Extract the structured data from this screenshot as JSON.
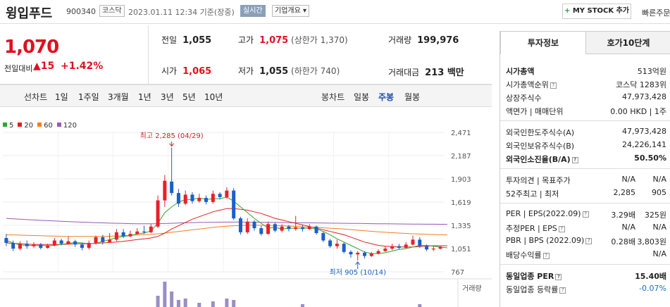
{
  "header": {
    "name": "윙입푸드",
    "code": "900340",
    "market": "코스닥",
    "time": "2023.01.11 12:34 기준(장중)",
    "realtime": "실시간",
    "company_btn": "기업개요 ▾",
    "mystock": "MY STOCK 추가",
    "quick": "빠른주문"
  },
  "summary": {
    "price": "1,070",
    "change_label": "전일대비",
    "change_value": "▲15",
    "change_pct": "+1.42%",
    "prev_close_label": "전일",
    "prev_close": "1,055",
    "high_label": "고가",
    "high": "1,075",
    "upper_limit": "(상한가 1,370)",
    "volume_label": "거래량",
    "volume": "199,976",
    "open_label": "시가",
    "open": "1,065",
    "low_label": "저가",
    "low": "1,055",
    "lower_limit": "(하한가 740)",
    "amount_label": "거래대금",
    "amount": "213 백만"
  },
  "tabs": {
    "line_label": "선차트",
    "line_items": [
      "1일",
      "1주일",
      "3개월",
      "1년",
      "3년",
      "5년",
      "10년"
    ],
    "candle_label": "봉차트",
    "candle_items": [
      "일봉",
      "주봉",
      "월봉"
    ],
    "candle_active": "주봉"
  },
  "chart_data": {
    "type": "candlestick",
    "legend": [
      {
        "name": "5",
        "color": "#2fa62f"
      },
      {
        "name": "20",
        "color": "#e02020"
      },
      {
        "name": "60",
        "color": "#f08020"
      },
      {
        "name": "120",
        "color": "#9b59b6"
      }
    ],
    "y_ticks": [
      "2,471",
      "2,187",
      "1,903",
      "1,619",
      "1,335",
      "1,051",
      "767"
    ],
    "ylim": [
      767,
      2471
    ],
    "high_annotation": "최고 2,285 (04/29)",
    "low_annotation": "최저 905 (10/14)",
    "volume_label": "거래량",
    "candles": [
      {
        "o": 1180,
        "c": 1120,
        "h": 1230,
        "l": 1080
      },
      {
        "o": 1120,
        "c": 1050,
        "h": 1150,
        "l": 1020
      },
      {
        "o": 1050,
        "c": 1110,
        "h": 1140,
        "l": 1030
      },
      {
        "o": 1110,
        "c": 1080,
        "h": 1150,
        "l": 1050
      },
      {
        "o": 1080,
        "c": 1100,
        "h": 1130,
        "l": 1060
      },
      {
        "o": 1100,
        "c": 1060,
        "h": 1120,
        "l": 1040
      },
      {
        "o": 1060,
        "c": 1090,
        "h": 1110,
        "l": 1050
      },
      {
        "o": 1090,
        "c": 1150,
        "h": 1180,
        "l": 1080
      },
      {
        "o": 1150,
        "c": 1110,
        "h": 1170,
        "l": 1090
      },
      {
        "o": 1110,
        "c": 1140,
        "h": 1200,
        "l": 1100
      },
      {
        "o": 1140,
        "c": 1100,
        "h": 1160,
        "l": 1070
      },
      {
        "o": 1100,
        "c": 1060,
        "h": 1120,
        "l": 1030
      },
      {
        "o": 1060,
        "c": 1120,
        "h": 1150,
        "l": 1040
      },
      {
        "o": 1120,
        "c": 1190,
        "h": 1210,
        "l": 1100
      },
      {
        "o": 1190,
        "c": 1130,
        "h": 1220,
        "l": 1100
      },
      {
        "o": 1130,
        "c": 1160,
        "h": 1240,
        "l": 1120
      },
      {
        "o": 1160,
        "c": 1250,
        "h": 1290,
        "l": 1140
      },
      {
        "o": 1250,
        "c": 1200,
        "h": 1290,
        "l": 1180
      },
      {
        "o": 1200,
        "c": 1230,
        "h": 1270,
        "l": 1190
      },
      {
        "o": 1230,
        "c": 1260,
        "h": 1300,
        "l": 1220
      },
      {
        "o": 1260,
        "c": 1250,
        "h": 1330,
        "l": 1230
      },
      {
        "o": 1250,
        "c": 1320,
        "h": 1350,
        "l": 1240
      },
      {
        "o": 1320,
        "c": 1640,
        "h": 1700,
        "l": 1300
      },
      {
        "o": 1640,
        "c": 1880,
        "h": 1950,
        "l": 1560
      },
      {
        "o": 1870,
        "c": 1730,
        "h": 2285,
        "l": 1700
      },
      {
        "o": 1730,
        "c": 1600,
        "h": 1780,
        "l": 1560
      },
      {
        "o": 1600,
        "c": 1710,
        "h": 1760,
        "l": 1580
      },
      {
        "o": 1710,
        "c": 1630,
        "h": 1740,
        "l": 1600
      },
      {
        "o": 1630,
        "c": 1670,
        "h": 1720,
        "l": 1610
      },
      {
        "o": 1670,
        "c": 1620,
        "h": 1700,
        "l": 1590
      },
      {
        "o": 1620,
        "c": 1720,
        "h": 1760,
        "l": 1600
      },
      {
        "o": 1720,
        "c": 1680,
        "h": 1740,
        "l": 1650
      },
      {
        "o": 1680,
        "c": 1760,
        "h": 1800,
        "l": 1660
      },
      {
        "o": 1760,
        "c": 1420,
        "h": 1790,
        "l": 1400
      },
      {
        "o": 1420,
        "c": 1250,
        "h": 1440,
        "l": 1220
      },
      {
        "o": 1250,
        "c": 1380,
        "h": 1420,
        "l": 1230
      },
      {
        "o": 1380,
        "c": 1300,
        "h": 1400,
        "l": 1270
      },
      {
        "o": 1300,
        "c": 1230,
        "h": 1330,
        "l": 1210
      },
      {
        "o": 1230,
        "c": 1350,
        "h": 1380,
        "l": 1220
      },
      {
        "o": 1350,
        "c": 1270,
        "h": 1370,
        "l": 1250
      },
      {
        "o": 1270,
        "c": 1320,
        "h": 1350,
        "l": 1250
      },
      {
        "o": 1320,
        "c": 1290,
        "h": 1340,
        "l": 1260
      },
      {
        "o": 1290,
        "c": 1310,
        "h": 1450,
        "l": 1270
      },
      {
        "o": 1310,
        "c": 1290,
        "h": 1340,
        "l": 1260
      },
      {
        "o": 1290,
        "c": 1320,
        "h": 1350,
        "l": 1280
      },
      {
        "o": 1320,
        "c": 1240,
        "h": 1330,
        "l": 1220
      },
      {
        "o": 1240,
        "c": 1150,
        "h": 1260,
        "l": 1130
      },
      {
        "o": 1150,
        "c": 1080,
        "h": 1170,
        "l": 1060
      },
      {
        "o": 1080,
        "c": 1110,
        "h": 1160,
        "l": 1050
      },
      {
        "o": 1110,
        "c": 1010,
        "h": 1130,
        "l": 990
      },
      {
        "o": 1010,
        "c": 980,
        "h": 1030,
        "l": 940
      },
      {
        "o": 980,
        "c": 1000,
        "h": 1020,
        "l": 905
      },
      {
        "o": 1000,
        "c": 960,
        "h": 1020,
        "l": 930
      },
      {
        "o": 960,
        "c": 990,
        "h": 1010,
        "l": 950
      },
      {
        "o": 990,
        "c": 1020,
        "h": 1040,
        "l": 980
      },
      {
        "o": 1020,
        "c": 1050,
        "h": 1080,
        "l": 1010
      },
      {
        "o": 1050,
        "c": 1080,
        "h": 1110,
        "l": 1030
      },
      {
        "o": 1080,
        "c": 1060,
        "h": 1110,
        "l": 1040
      },
      {
        "o": 1060,
        "c": 1100,
        "h": 1130,
        "l": 1050
      },
      {
        "o": 1100,
        "c": 1160,
        "h": 1210,
        "l": 1090
      },
      {
        "o": 1160,
        "c": 1080,
        "h": 1190,
        "l": 1060
      },
      {
        "o": 1080,
        "c": 1040,
        "h": 1100,
        "l": 1020
      },
      {
        "o": 1040,
        "c": 1050,
        "h": 1090,
        "l": 1020
      },
      {
        "o": 1050,
        "c": 1070,
        "h": 1080,
        "l": 1040
      }
    ],
    "ma5": [
      1150,
      1120,
      1095,
      1090,
      1085,
      1090,
      1085,
      1090,
      1100,
      1115,
      1125,
      1120,
      1110,
      1115,
      1140,
      1160,
      1185,
      1200,
      1210,
      1230,
      1240,
      1265,
      1360,
      1490,
      1560,
      1620,
      1650,
      1650,
      1670,
      1650,
      1660,
      1660,
      1680,
      1630,
      1560,
      1490,
      1420,
      1360,
      1300,
      1310,
      1290,
      1300,
      1300,
      1300,
      1300,
      1290,
      1260,
      1220,
      1170,
      1130,
      1090,
      1050,
      1010,
      990,
      990,
      1000,
      1020,
      1040,
      1050,
      1070,
      1090,
      1090,
      1080,
      1070,
      1060
    ],
    "ma20": [
      1120,
      1115,
      1110,
      1105,
      1100,
      1100,
      1100,
      1100,
      1100,
      1105,
      1110,
      1110,
      1110,
      1115,
      1120,
      1125,
      1130,
      1140,
      1150,
      1160,
      1170,
      1180,
      1200,
      1240,
      1290,
      1330,
      1370,
      1410,
      1440,
      1470,
      1500,
      1520,
      1540,
      1540,
      1530,
      1520,
      1500,
      1480,
      1450,
      1420,
      1400,
      1380,
      1360,
      1340,
      1320,
      1300,
      1280,
      1260,
      1240,
      1220,
      1190,
      1160,
      1130,
      1110,
      1090,
      1080,
      1075,
      1070,
      1070,
      1070,
      1075,
      1080,
      1085,
      1085,
      1085
    ],
    "ma60": [
      1220,
      1218,
      1215,
      1212,
      1210,
      1208,
      1205,
      1203,
      1200,
      1200,
      1200,
      1200,
      1200,
      1200,
      1200,
      1202,
      1205,
      1208,
      1212,
      1216,
      1220,
      1225,
      1232,
      1240,
      1250,
      1260,
      1270,
      1280,
      1290,
      1300,
      1310,
      1318,
      1325,
      1330,
      1333,
      1335,
      1336,
      1336,
      1335,
      1333,
      1330,
      1326,
      1322,
      1318,
      1314,
      1310,
      1305,
      1300,
      1295,
      1290,
      1283,
      1276,
      1269,
      1262,
      1256,
      1250,
      1245,
      1240,
      1236,
      1232,
      1228,
      1225,
      1222,
      1220,
      1218
    ],
    "ma120": [
      1420,
      1415,
      1410,
      1405,
      1400,
      1396,
      1392,
      1388,
      1384,
      1380,
      1377,
      1374,
      1371,
      1368,
      1365,
      1362,
      1360,
      1358,
      1356,
      1355,
      1354,
      1354,
      1355,
      1357,
      1360,
      1363,
      1366,
      1368,
      1370,
      1372,
      1373,
      1374,
      1375,
      1375,
      1375,
      1374,
      1373,
      1372,
      1371,
      1370,
      1369,
      1368,
      1367,
      1366,
      1365,
      1364,
      1363,
      1362,
      1361,
      1360,
      1359,
      1358,
      1357,
      1356,
      1355,
      1354,
      1353,
      1352,
      1351,
      1350,
      1350,
      1349,
      1349,
      1348,
      1348
    ],
    "volume": [
      0,
      0,
      0,
      0,
      0,
      0,
      0,
      0,
      0,
      0,
      0,
      0,
      0,
      0,
      0,
      0,
      0,
      0,
      0,
      0,
      0,
      0,
      40,
      90,
      55,
      25,
      30,
      0,
      15,
      0,
      20,
      0,
      30,
      25,
      0,
      0,
      0,
      0,
      0,
      0,
      0,
      0,
      0,
      10,
      0,
      0,
      0,
      0,
      0,
      0,
      0,
      0,
      0,
      0,
      0,
      0,
      0,
      0,
      0,
      0,
      10,
      0,
      0,
      0,
      0
    ]
  },
  "panel": {
    "tab1": "투자정보",
    "tab2": "호가10단계",
    "rows1": [
      {
        "l": "시가총액",
        "r": "513억원",
        "lb": true,
        "rb": false
      },
      {
        "l": "시가총액순위",
        "r": "코스닥 1283위",
        "q": true
      },
      {
        "l": "상장주식수",
        "r": "47,973,428"
      },
      {
        "l": "액면가 | 매매단위",
        "r": "0.00 HKD  |  1주"
      }
    ],
    "rows2": [
      {
        "l": "외국인한도주식수(A)",
        "r": "47,973,428"
      },
      {
        "l": "외국인보유주식수(B)",
        "r": "24,226,141"
      },
      {
        "l": "외국인소진율(B/A)",
        "r": "50.50%",
        "b": true,
        "q": true
      }
    ],
    "rows3": [
      {
        "l": "투자의견  |  목표주가",
        "m": "N/A",
        "r": "N/A"
      },
      {
        "l": "52주최고  |  최저",
        "m": "2,285",
        "r": "905"
      }
    ],
    "rows4": [
      {
        "l": "PER  |  EPS(2022.09)",
        "m": "3.29배",
        "r": "325원",
        "q": true
      },
      {
        "l": "추정PER  |  EPS",
        "m": "N/A",
        "r": "N/A",
        "q": true
      },
      {
        "l": "PBR  |  BPS (2022.09)",
        "m": "0.28배",
        "r": "3,803원",
        "q": true
      },
      {
        "l": "배당수익률",
        "m": "",
        "r": "N/A",
        "q": true
      }
    ],
    "rows5": [
      {
        "l": "동일업종 PER",
        "r": "15.40배",
        "b": true,
        "q": true
      },
      {
        "l": "동일업종 등락률",
        "r": "-0.07%",
        "q": true,
        "blue": true
      }
    ]
  }
}
